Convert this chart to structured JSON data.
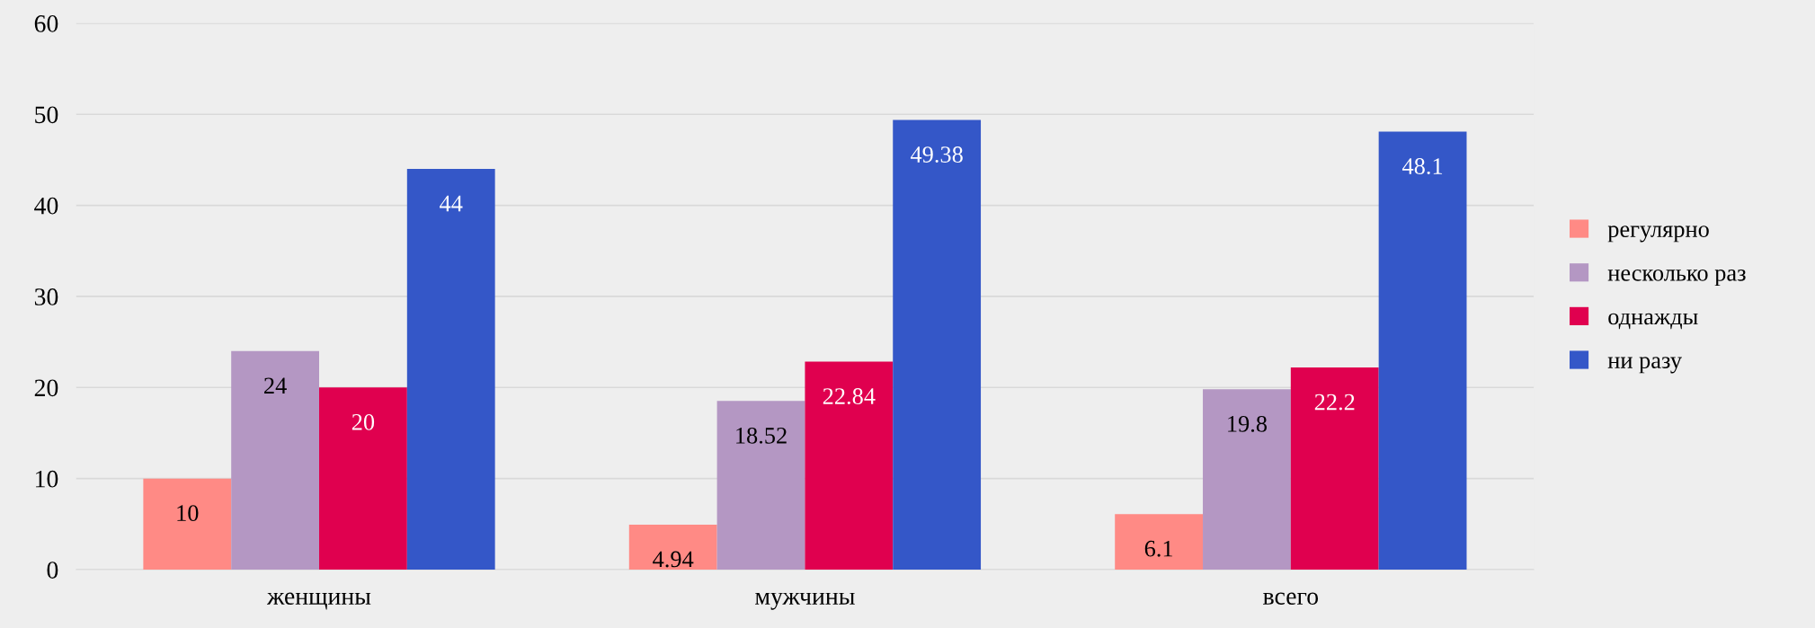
{
  "chart_data": {
    "type": "bar",
    "categories": [
      "женщины",
      "мужчины",
      "всего"
    ],
    "series": [
      {
        "name": "регулярно",
        "color": "#ff8a85",
        "values": [
          10,
          4.94,
          6.1
        ]
      },
      {
        "name": "несколько раз",
        "color": "#b497c3",
        "values": [
          24,
          18.52,
          19.8
        ]
      },
      {
        "name": "однажды",
        "color": "#e0004f",
        "values": [
          20,
          22.84,
          22.2
        ]
      },
      {
        "name": "ни разу",
        "color": "#3457c8",
        "values": [
          44,
          49.38,
          48.1
        ]
      }
    ],
    "ylim": [
      0,
      60
    ],
    "yticks": [
      0,
      10,
      20,
      30,
      40,
      50,
      60
    ],
    "grid": "y",
    "legend": "right",
    "data_labels": true
  }
}
